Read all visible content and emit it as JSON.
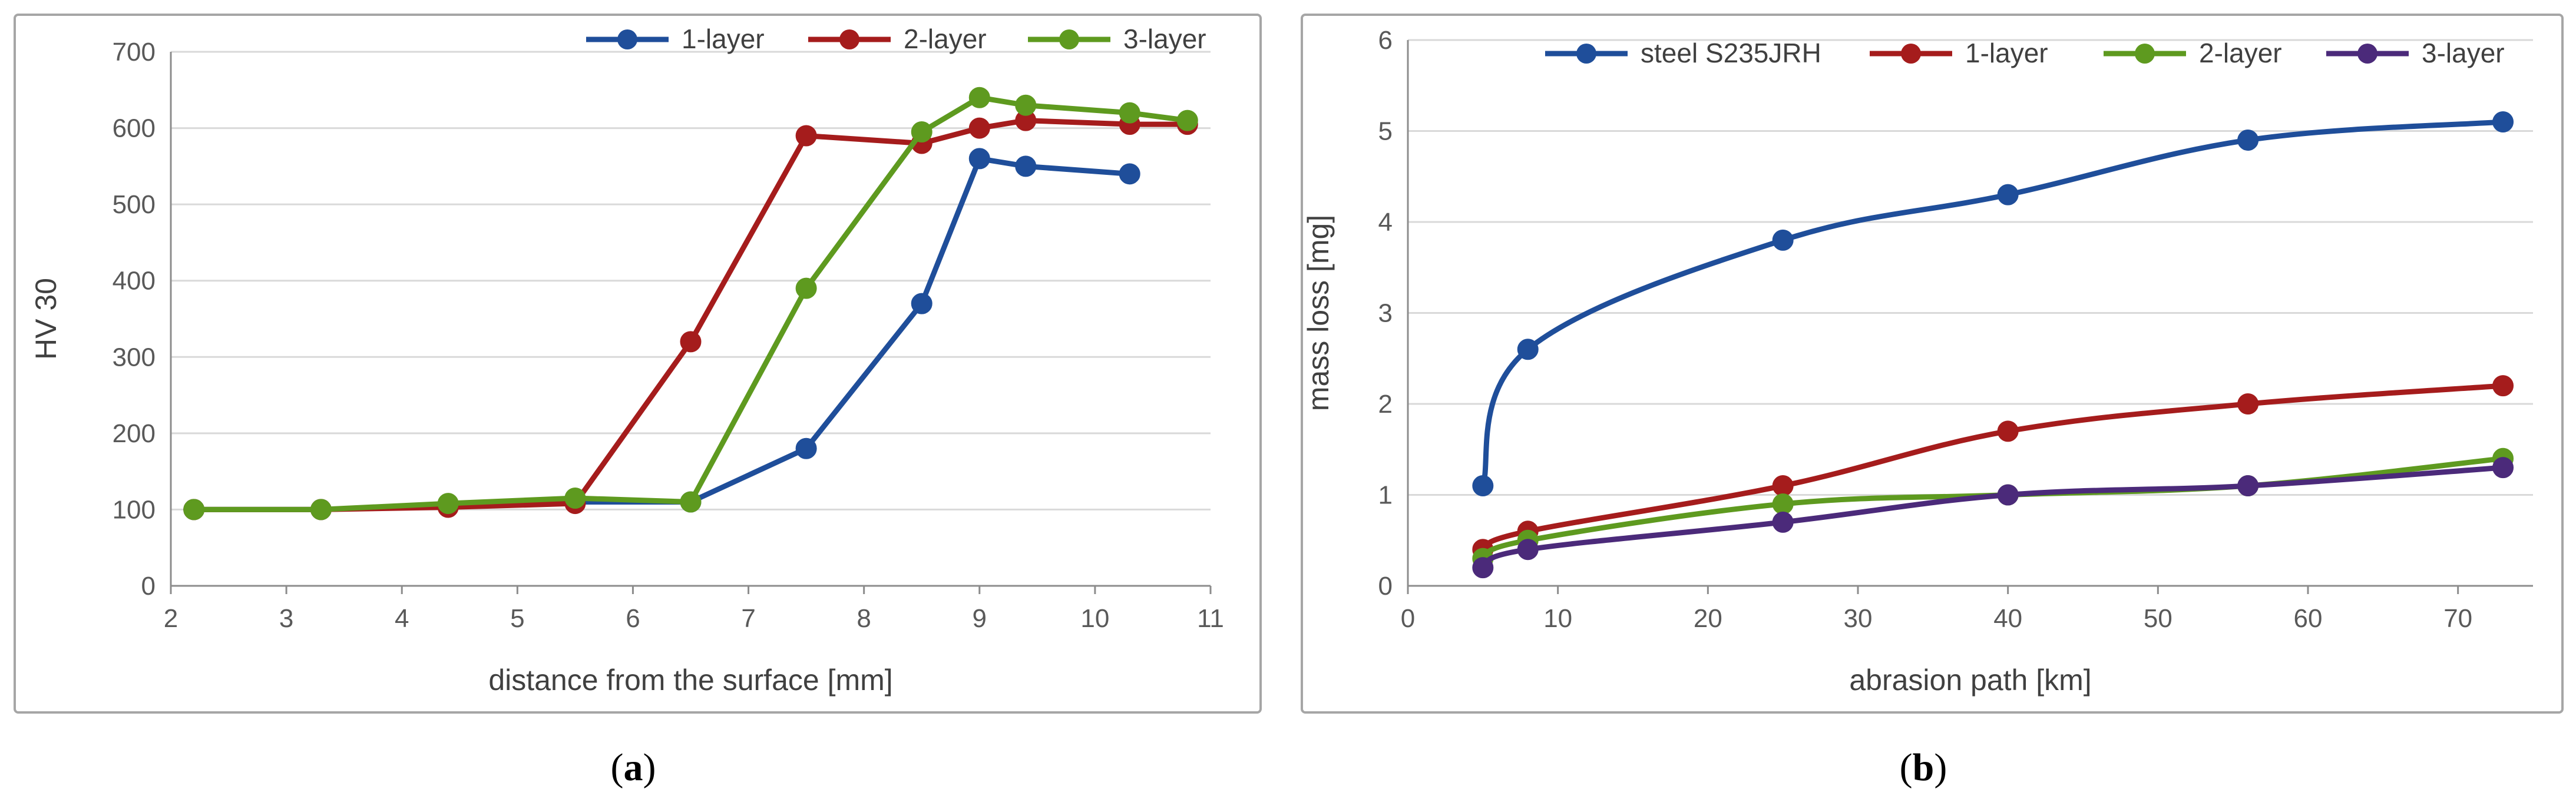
{
  "chart_data": [
    {
      "type": "line",
      "panel_label": "a",
      "xlabel": "distance from the surface [mm]",
      "ylabel": "HV 30",
      "xlim": [
        2,
        11
      ],
      "ylim": [
        0,
        700
      ],
      "xticks": [
        2,
        3,
        4,
        5,
        6,
        7,
        8,
        9,
        10,
        11
      ],
      "yticks": [
        0,
        100,
        200,
        300,
        400,
        500,
        600,
        700
      ],
      "grid": "horizontal",
      "legend_position": "top",
      "series": [
        {
          "name": "1-layer",
          "color": "#1f4e9a",
          "x": [
            2.2,
            3.3,
            4.4,
            5.5,
            6.5,
            7.5,
            8.5,
            9.0,
            9.4,
            10.3
          ],
          "y": [
            100,
            100,
            105,
            110,
            110,
            180,
            370,
            560,
            550,
            540
          ]
        },
        {
          "name": "2-layer",
          "color": "#a51c1c",
          "x": [
            2.2,
            3.3,
            4.4,
            5.5,
            6.5,
            7.5,
            8.5,
            9.0,
            9.4,
            10.3,
            10.8
          ],
          "y": [
            100,
            100,
            103,
            108,
            320,
            590,
            580,
            600,
            610,
            605,
            605
          ]
        },
        {
          "name": "3-layer",
          "color": "#5e9a1f",
          "x": [
            2.2,
            3.3,
            4.4,
            5.5,
            6.5,
            7.5,
            8.5,
            9.0,
            9.4,
            10.3,
            10.8
          ],
          "y": [
            100,
            100,
            108,
            115,
            110,
            390,
            595,
            640,
            630,
            620,
            610
          ]
        }
      ]
    },
    {
      "type": "line",
      "panel_label": "b",
      "xlabel": "abrasion path [km]",
      "ylabel": "mass loss [mg]",
      "xlim": [
        0,
        75
      ],
      "ylim": [
        0,
        6
      ],
      "xticks": [
        0,
        10,
        20,
        30,
        40,
        50,
        60,
        70
      ],
      "yticks": [
        0,
        1,
        2,
        3,
        4,
        5,
        6
      ],
      "grid": "horizontal",
      "legend_position": "top",
      "series": [
        {
          "name": "steel S235JRH",
          "color": "#1f4e9a",
          "x": [
            5,
            8,
            25,
            40,
            56,
            73
          ],
          "y": [
            1.1,
            2.6,
            3.8,
            4.3,
            4.9,
            5.1
          ]
        },
        {
          "name": "1-layer",
          "color": "#a51c1c",
          "x": [
            5,
            8,
            25,
            40,
            56,
            73
          ],
          "y": [
            0.4,
            0.6,
            1.1,
            1.7,
            2.0,
            2.2
          ]
        },
        {
          "name": "2-layer",
          "color": "#5e9a1f",
          "x": [
            5,
            8,
            25,
            40,
            56,
            73
          ],
          "y": [
            0.3,
            0.5,
            0.9,
            1.0,
            1.1,
            1.4
          ]
        },
        {
          "name": "3-layer",
          "color": "#4b2a7a",
          "x": [
            5,
            8,
            25,
            40,
            56,
            73
          ],
          "y": [
            0.2,
            0.4,
            0.7,
            1.0,
            1.1,
            1.3
          ]
        }
      ]
    }
  ]
}
